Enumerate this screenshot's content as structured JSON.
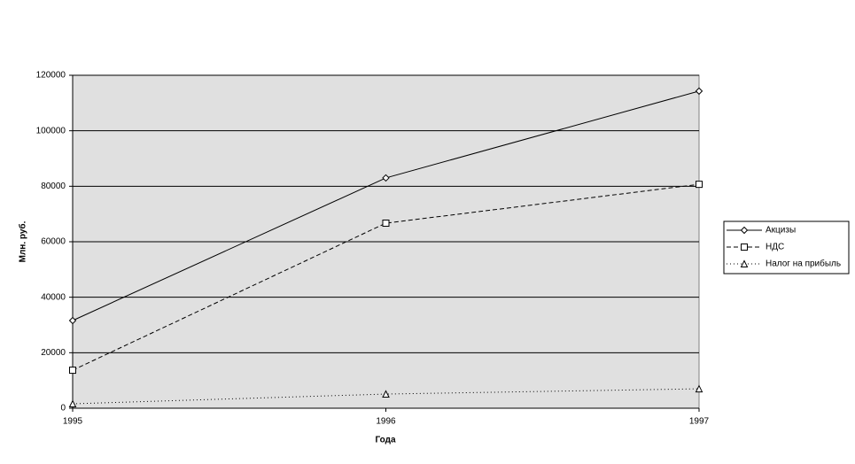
{
  "chart_data": {
    "type": "line",
    "x": [
      1995,
      1996,
      1997
    ],
    "xlim": [
      1995,
      1997
    ],
    "xticks": [
      1995,
      1996,
      1997
    ],
    "ylim": [
      0,
      120000
    ],
    "yticks": [
      0,
      20000,
      40000,
      60000,
      80000,
      100000,
      120000
    ],
    "grid": true,
    "legend": "right",
    "x_label": "Года",
    "y_label": "Млн. руб.",
    "series": [
      {
        "name": "Акцизы",
        "color": "#000000",
        "dash": "solid",
        "marker": "diamond",
        "values": [
          31600,
          83000,
          114300
        ]
      },
      {
        "name": "НДС",
        "color": "#000000",
        "dash": "dashed",
        "marker": "square",
        "values": [
          13700,
          66700,
          80700
        ]
      },
      {
        "name": "Налог на прибыль",
        "color": "#000000",
        "dash": "dotted",
        "marker": "triangle",
        "values": [
          1600,
          5100,
          7000
        ]
      }
    ]
  }
}
